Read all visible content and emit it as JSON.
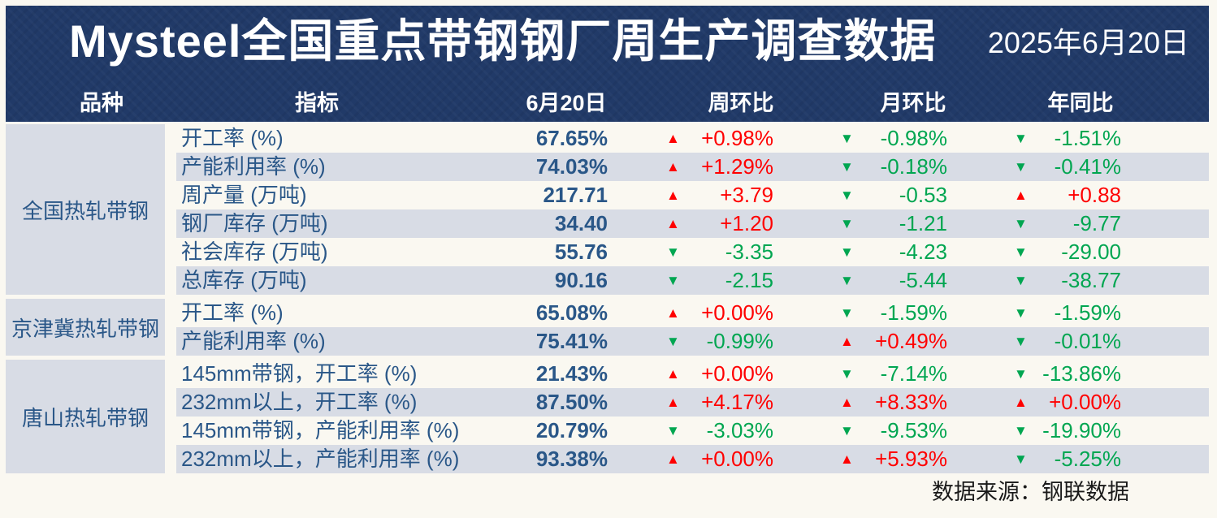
{
  "header": {
    "title": "Mysteel全国重点带钢钢厂周生产调查数据",
    "date": "2025年6月20日"
  },
  "columns": {
    "variety": "品种",
    "indicator": "指标",
    "value": "6月20日",
    "wow": "周环比",
    "mom": "月环比",
    "yoy": "年同比"
  },
  "icons": {
    "up_arrow": "▲",
    "down_arrow": "▼"
  },
  "colors": {
    "up": "#FF0000",
    "down": "#00A651",
    "header_bg": "#213A68",
    "row_alt": "#D8DCE5",
    "text_navy": "#2A5788",
    "page_bg": "#FAF8F1"
  },
  "groups": [
    {
      "name": "全国热轧带钢",
      "rows": [
        {
          "indicator": "开工率 (%)",
          "value": "67.65%",
          "wow": {
            "dir": "up",
            "text": "+0.98%"
          },
          "mom": {
            "dir": "down",
            "text": "-0.98%"
          },
          "yoy": {
            "dir": "down",
            "text": "-1.51%"
          }
        },
        {
          "indicator": "产能利用率 (%)",
          "value": "74.03%",
          "wow": {
            "dir": "up",
            "text": "+1.29%"
          },
          "mom": {
            "dir": "down",
            "text": "-0.18%"
          },
          "yoy": {
            "dir": "down",
            "text": "-0.41%"
          }
        },
        {
          "indicator": "周产量 (万吨)",
          "value": "217.71",
          "wow": {
            "dir": "up",
            "text": "+3.79"
          },
          "mom": {
            "dir": "down",
            "text": "-0.53"
          },
          "yoy": {
            "dir": "up",
            "text": "+0.88"
          }
        },
        {
          "indicator": "钢厂库存 (万吨)",
          "value": "34.40",
          "wow": {
            "dir": "up",
            "text": "+1.20"
          },
          "mom": {
            "dir": "down",
            "text": "-1.21"
          },
          "yoy": {
            "dir": "down",
            "text": "-9.77"
          }
        },
        {
          "indicator": "社会库存 (万吨)",
          "value": "55.76",
          "wow": {
            "dir": "down",
            "text": "-3.35"
          },
          "mom": {
            "dir": "down",
            "text": "-4.23"
          },
          "yoy": {
            "dir": "down",
            "text": "-29.00"
          }
        },
        {
          "indicator": "总库存 (万吨)",
          "value": "90.16",
          "wow": {
            "dir": "down",
            "text": "-2.15"
          },
          "mom": {
            "dir": "down",
            "text": "-5.44"
          },
          "yoy": {
            "dir": "down",
            "text": "-38.77"
          }
        }
      ]
    },
    {
      "name": "京津冀热轧带钢",
      "rows": [
        {
          "indicator": "开工率 (%)",
          "value": "65.08%",
          "wow": {
            "dir": "up",
            "text": "+0.00%"
          },
          "mom": {
            "dir": "down",
            "text": "-1.59%"
          },
          "yoy": {
            "dir": "down",
            "text": "-1.59%"
          }
        },
        {
          "indicator": "产能利用率 (%)",
          "value": "75.41%",
          "wow": {
            "dir": "down",
            "text": "-0.99%"
          },
          "mom": {
            "dir": "up",
            "text": "+0.49%"
          },
          "yoy": {
            "dir": "down",
            "text": "-0.01%"
          }
        }
      ]
    },
    {
      "name": "唐山热轧带钢",
      "rows": [
        {
          "indicator": "145mm带钢，开工率 (%)",
          "value": "21.43%",
          "wow": {
            "dir": "up",
            "text": "+0.00%"
          },
          "mom": {
            "dir": "down",
            "text": "-7.14%"
          },
          "yoy": {
            "dir": "down",
            "text": "-13.86%"
          }
        },
        {
          "indicator": "232mm以上，开工率 (%)",
          "value": "87.50%",
          "wow": {
            "dir": "up",
            "text": "+4.17%"
          },
          "mom": {
            "dir": "up",
            "text": "+8.33%"
          },
          "yoy": {
            "dir": "up",
            "text": "+0.00%"
          }
        },
        {
          "indicator": "145mm带钢，产能利用率 (%)",
          "value": "20.79%",
          "wow": {
            "dir": "down",
            "text": "-3.03%"
          },
          "mom": {
            "dir": "down",
            "text": "-9.53%"
          },
          "yoy": {
            "dir": "down",
            "text": "-19.90%"
          }
        },
        {
          "indicator": "232mm以上，产能利用率 (%)",
          "value": "93.38%",
          "wow": {
            "dir": "up",
            "text": "+0.00%"
          },
          "mom": {
            "dir": "up",
            "text": "+5.93%"
          },
          "yoy": {
            "dir": "down",
            "text": "-5.25%"
          }
        }
      ]
    }
  ],
  "footer": {
    "source": "数据来源：钢联数据"
  }
}
